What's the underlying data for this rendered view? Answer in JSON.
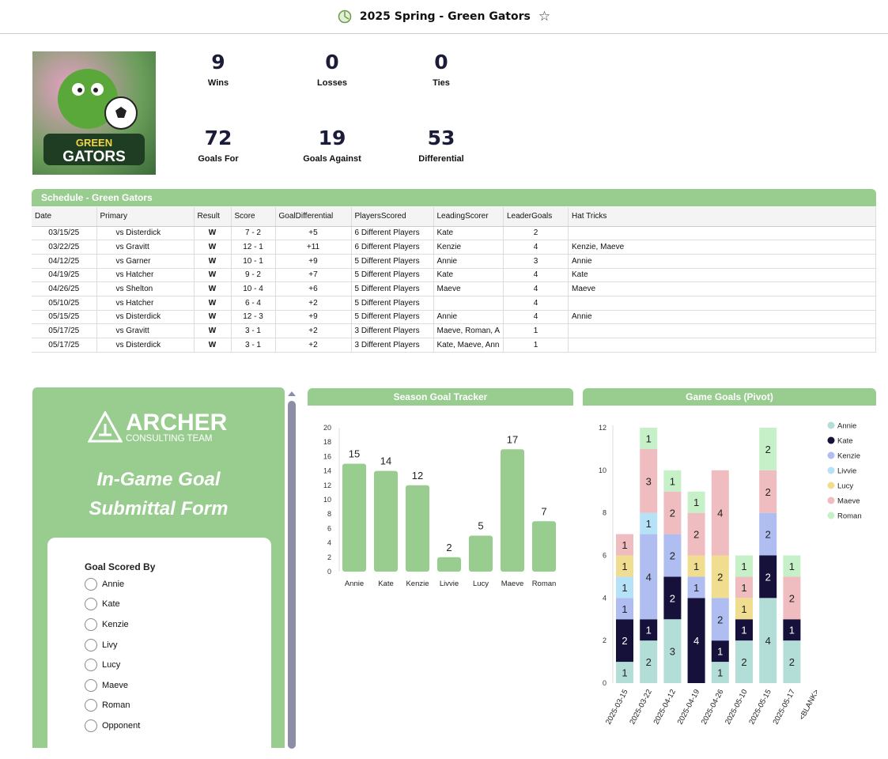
{
  "header": {
    "title": "2025 Spring - Green Gators"
  },
  "logo": {
    "text": "GREEN GATORS"
  },
  "stats": [
    {
      "value": "9",
      "label": "Wins"
    },
    {
      "value": "0",
      "label": "Losses"
    },
    {
      "value": "0",
      "label": "Ties"
    },
    {
      "value": "72",
      "label": "Goals For"
    },
    {
      "value": "19",
      "label": "Goals Against"
    },
    {
      "value": "53",
      "label": "Differential"
    }
  ],
  "schedule": {
    "title": "Schedule - Green Gators",
    "columns": [
      "Date",
      "Primary",
      "Result",
      "Score",
      "GoalDifferential",
      "PlayersScored",
      "LeadingScorer",
      "LeaderGoals",
      "Hat Tricks"
    ],
    "rows": [
      [
        "03/15/25",
        "vs Disterdick",
        "W",
        "7 - 2",
        "+5",
        "6 Different Players",
        "Kate",
        "2",
        ""
      ],
      [
        "03/22/25",
        "vs Gravitt",
        "W",
        "12 - 1",
        "+11",
        "6 Different Players",
        "Kenzie",
        "4",
        "Kenzie, Maeve"
      ],
      [
        "04/12/25",
        "vs Garner",
        "W",
        "10 - 1",
        "+9",
        "5 Different Players",
        "Annie",
        "3",
        "Annie"
      ],
      [
        "04/19/25",
        "vs Hatcher",
        "W",
        "9 - 2",
        "+7",
        "5 Different Players",
        "Kate",
        "4",
        "Kate"
      ],
      [
        "04/26/25",
        "vs Shelton",
        "W",
        "10 - 4",
        "+6",
        "5 Different Players",
        "Maeve",
        "4",
        "Maeve"
      ],
      [
        "05/10/25",
        "vs Hatcher",
        "W",
        "6 - 4",
        "+2",
        "5 Different Players",
        "",
        "4",
        ""
      ],
      [
        "05/15/25",
        "vs Disterdick",
        "W",
        "12 - 3",
        "+9",
        "5 Different Players",
        "Annie",
        "4",
        "Annie"
      ],
      [
        "05/17/25",
        "vs Gravitt",
        "W",
        "3 - 1",
        "+2",
        "3 Different Players",
        "Maeve, Roman, A",
        "1",
        ""
      ],
      [
        "05/17/25",
        "vs Disterdick",
        "W",
        "3 - 1",
        "+2",
        "3 Different Players",
        "Kate, Maeve, Ann",
        "1",
        ""
      ]
    ]
  },
  "form": {
    "brand": "ARCHER",
    "brand_sub": "CONSULTING TEAM",
    "title_line1": "In-Game Goal",
    "title_line2": "Submittal Form",
    "question": "Goal Scored By",
    "options": [
      "Annie",
      "Kate",
      "Kenzie",
      "Livy",
      "Lucy",
      "Maeve",
      "Roman",
      "Opponent"
    ]
  },
  "chart_data": [
    {
      "type": "bar",
      "title": "Season Goal Tracker",
      "categories": [
        "Annie",
        "Kate",
        "Kenzie",
        "Livvie",
        "Lucy",
        "Maeve",
        "Roman"
      ],
      "values": [
        15,
        14,
        12,
        2,
        5,
        17,
        7
      ],
      "ylim": [
        0,
        20
      ],
      "yticks": [
        0,
        2,
        4,
        6,
        8,
        10,
        12,
        14,
        16,
        18,
        20
      ],
      "color": "#98cd8f"
    },
    {
      "type": "bar",
      "stacked": true,
      "title": "Game Goals (Pivot)",
      "categories": [
        "2025-03-15",
        "2025-03-22",
        "2025-04-12",
        "2025-04-19",
        "2025-04-26",
        "2025-05-10",
        "2025-05-15",
        "2025-05-17",
        "<BLANK>"
      ],
      "ylim": [
        0,
        12
      ],
      "yticks": [
        0,
        2,
        4,
        6,
        8,
        10,
        12
      ],
      "legend": "top-right",
      "series": [
        {
          "name": "Annie",
          "color": "#b3ded8",
          "values": [
            1,
            2,
            3,
            0,
            1,
            2,
            4,
            2,
            0
          ]
        },
        {
          "name": "Kate",
          "color": "#15113a",
          "values": [
            2,
            1,
            2,
            4,
            1,
            1,
            2,
            1,
            0
          ]
        },
        {
          "name": "Kenzie",
          "color": "#afbdf0",
          "values": [
            1,
            4,
            2,
            1,
            2,
            0,
            2,
            0,
            0
          ]
        },
        {
          "name": "Livvie",
          "color": "#b5e2f7",
          "values": [
            1,
            1,
            0,
            0,
            0,
            0,
            0,
            0,
            0
          ]
        },
        {
          "name": "Lucy",
          "color": "#f1dd8f",
          "values": [
            1,
            0,
            0,
            1,
            2,
            1,
            0,
            0,
            0
          ]
        },
        {
          "name": "Maeve",
          "color": "#efbcc0",
          "values": [
            1,
            3,
            2,
            2,
            4,
            1,
            2,
            2,
            0
          ]
        },
        {
          "name": "Roman",
          "color": "#c5f0c8",
          "values": [
            0,
            1,
            1,
            1,
            0,
            1,
            2,
            1,
            0
          ]
        }
      ]
    }
  ]
}
